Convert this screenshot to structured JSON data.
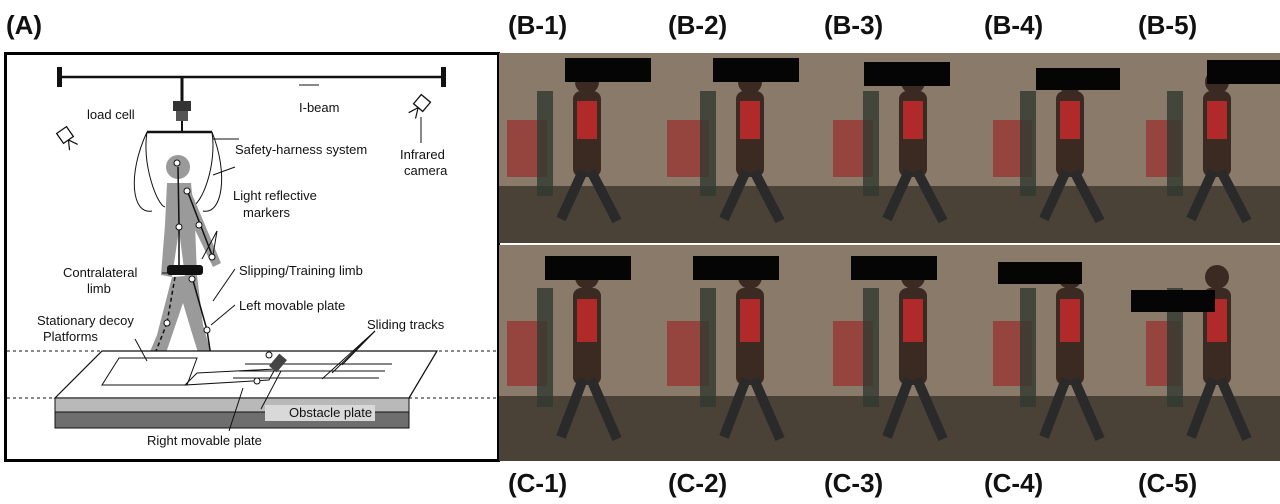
{
  "panel_labels": {
    "a": "(A)",
    "b": [
      "(B-1)",
      "(B-2)",
      "(B-3)",
      "(B-4)",
      "(B-5)"
    ],
    "c": [
      "(C-1)",
      "(C-2)",
      "(C-3)",
      "(C-4)",
      "(C-5)"
    ]
  },
  "diagram": {
    "labels": {
      "load_cell": "load cell",
      "i_beam": "I-beam",
      "safety_harness": "Safety-harness system",
      "infrared_1": "Infrared",
      "infrared_2": "camera",
      "reflective_1": "Light reflective",
      "reflective_2": "markers",
      "contralateral_1": "Contralateral",
      "contralateral_2": "limb",
      "slipping": "Slipping/Training limb",
      "left_plate": "Left movable plate",
      "decoy_1": "Stationary decoy",
      "decoy_2": "Platforms",
      "sliding": "Sliding tracks",
      "obstacle": "Obstacle plate",
      "right_plate": "Right movable plate"
    }
  },
  "colors": {
    "wall": "#8a7a6a",
    "floor": "#4a4236",
    "harness": "#b02a2a",
    "redaction": "#050505"
  }
}
